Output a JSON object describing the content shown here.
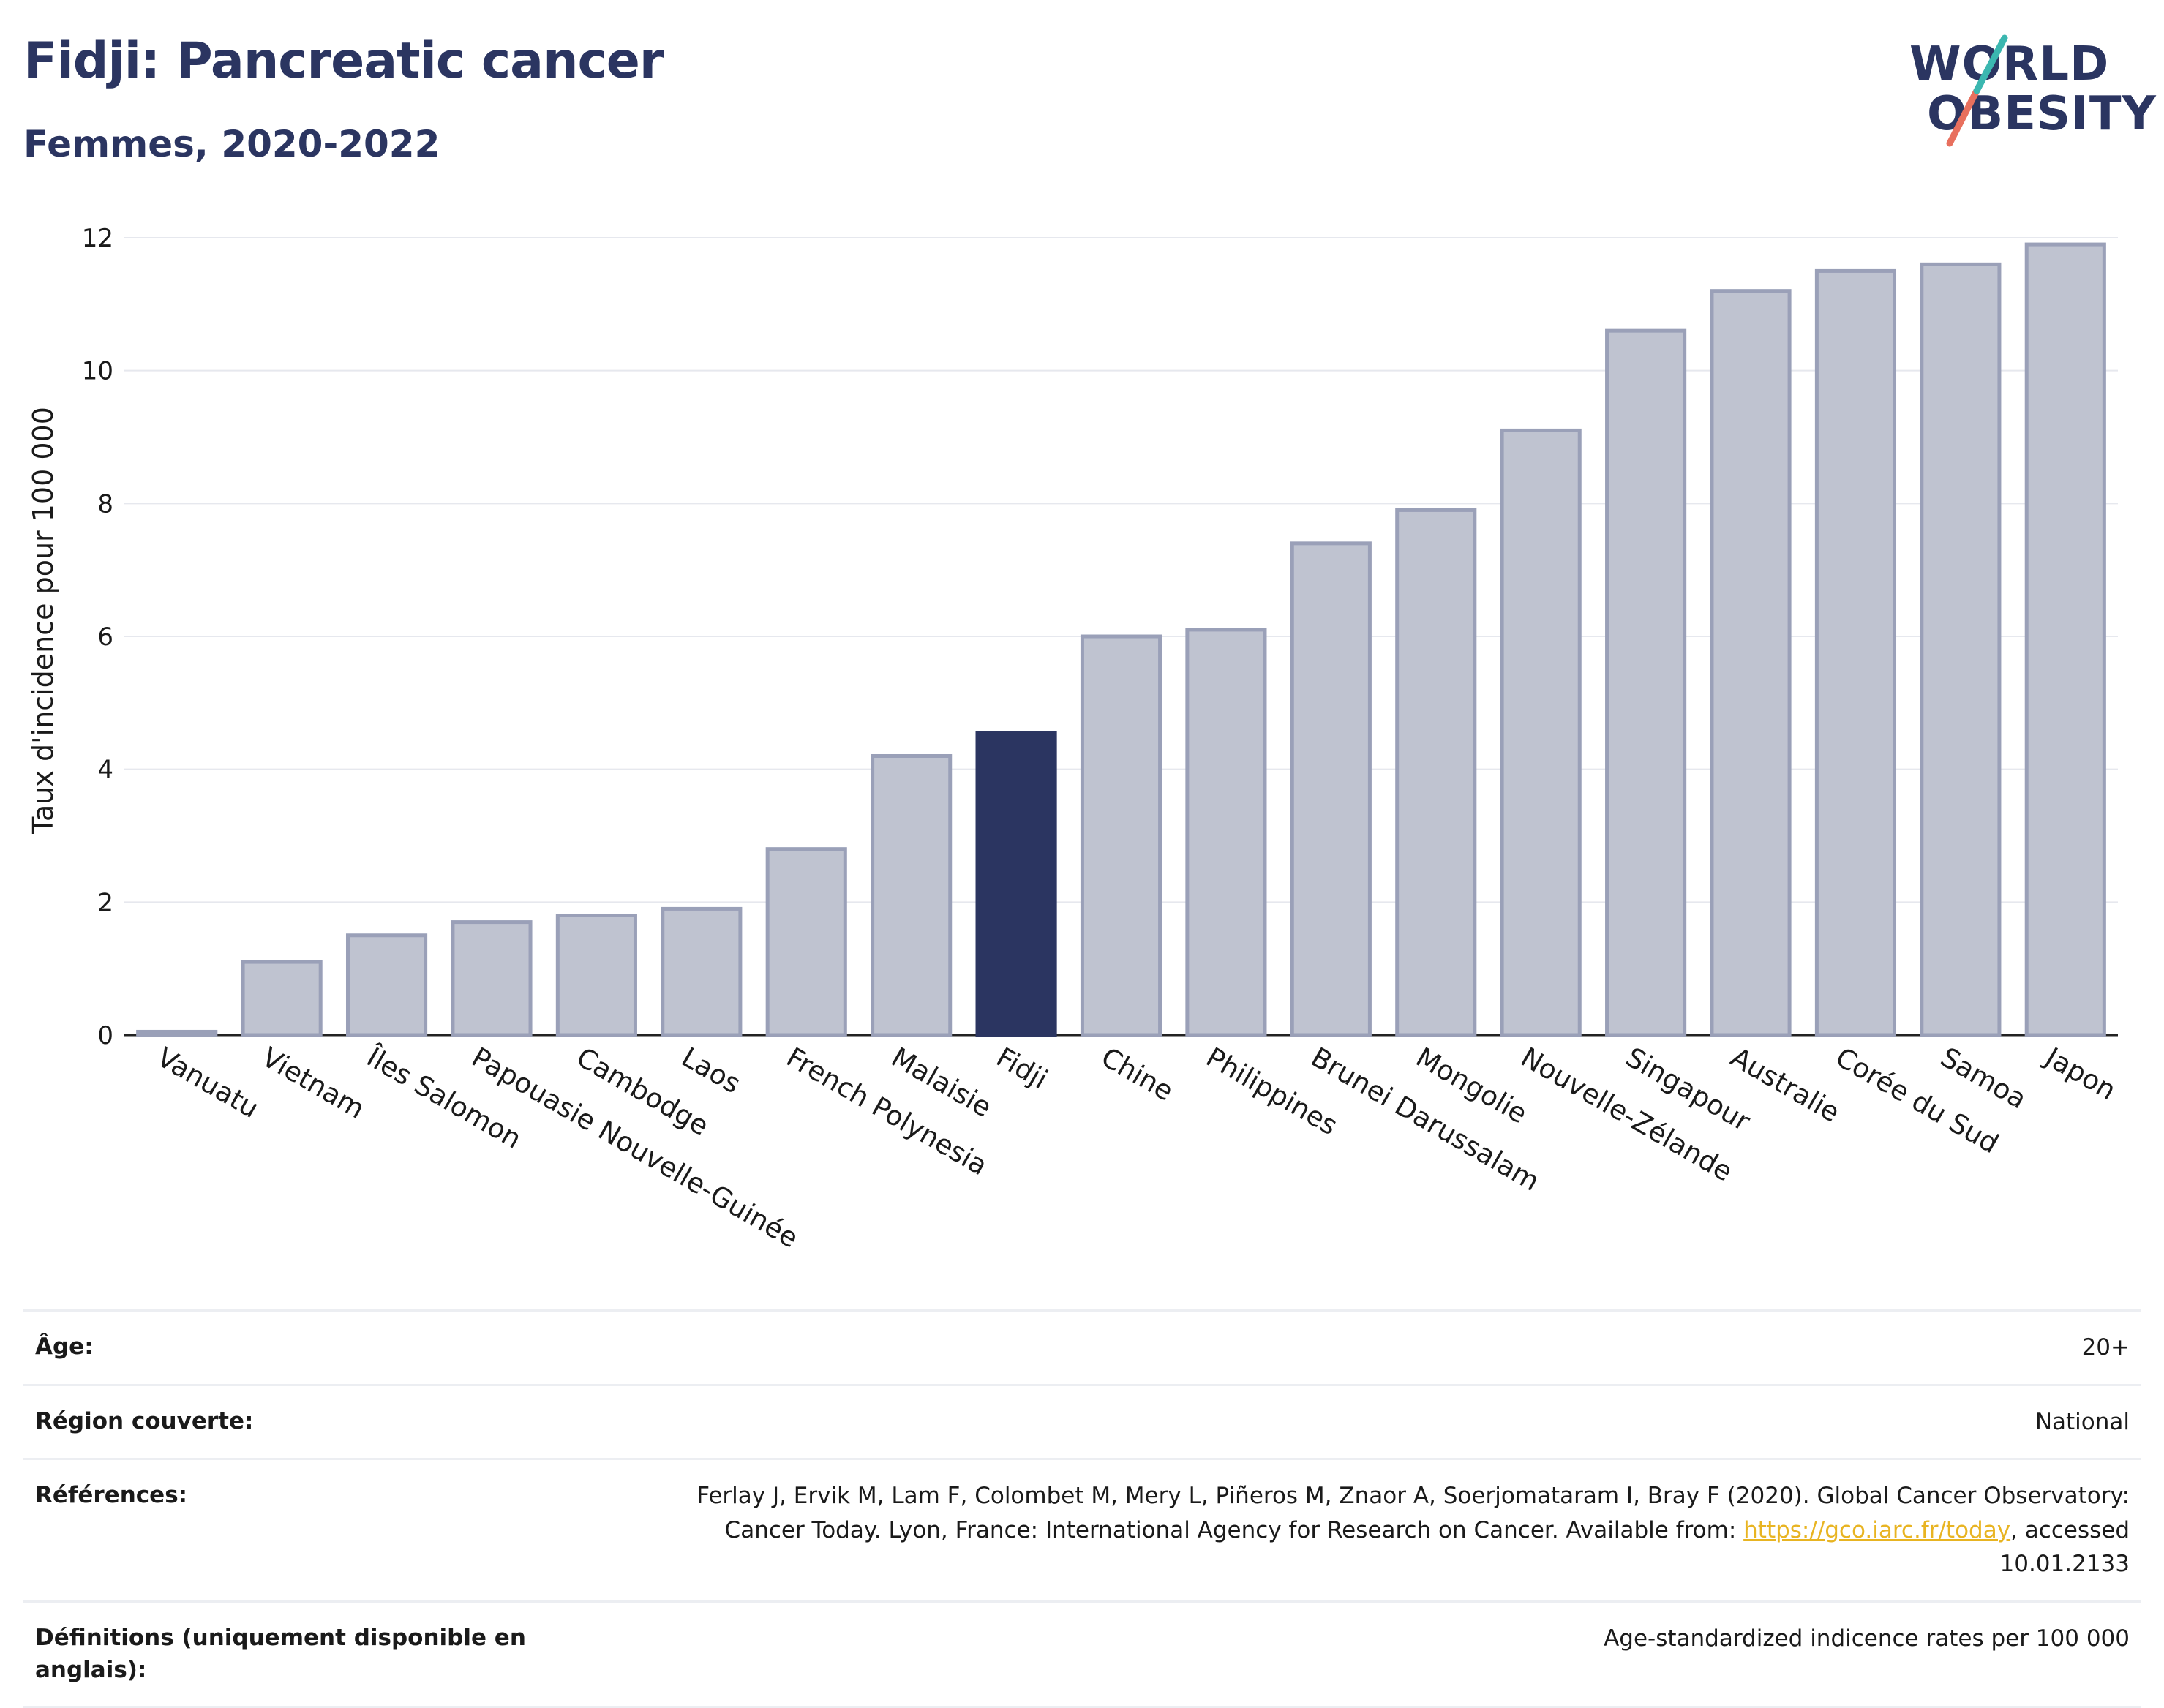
{
  "title": "Fidji: Pancreatic cancer",
  "subtitle": "Femmes, 2020-2022",
  "logo": {
    "line1": "WORLD",
    "line2": "OBESITY"
  },
  "colors": {
    "bar": "#bfc3d0",
    "bar_stroke": "#9aa0b8",
    "highlight": "#2b3561",
    "title": "#2b3561"
  },
  "chart_data": {
    "type": "bar",
    "title": "Fidji: Pancreatic cancer",
    "subtitle": "Femmes, 2020-2022",
    "ylabel": "Taux d'incidence pour 100 000",
    "xlabel": "",
    "ylim": [
      0,
      12
    ],
    "yticks": [
      0,
      2,
      4,
      6,
      8,
      10,
      12
    ],
    "grid": true,
    "highlight": "Fidji",
    "categories": [
      "Vanuatu",
      "Vietnam",
      "Îles Salomon",
      "Papouasie Nouvelle-Guinée",
      "Cambodge",
      "Laos",
      "French Polynesia",
      "Malaisie",
      "Fidji",
      "Chine",
      "Philippines",
      "Brunei Darussalam",
      "Mongolie",
      "Nouvelle-Zélande",
      "Singapour",
      "Australie",
      "Corée du Sud",
      "Samoa",
      "Japon"
    ],
    "values": [
      0.05,
      1.1,
      1.5,
      1.7,
      1.8,
      1.9,
      2.8,
      4.2,
      4.55,
      6.0,
      6.1,
      7.4,
      7.9,
      9.1,
      10.6,
      11.2,
      11.5,
      11.6,
      11.9
    ]
  },
  "info": {
    "age": {
      "label": "Âge:",
      "value": "20+"
    },
    "region": {
      "label": "Région couverte:",
      "value": "National"
    },
    "references": {
      "label": "Références:",
      "text_before": "Ferlay J, Ervik M, Lam F, Colombet M, Mery L, Piñeros M, Znaor A, Soerjomataram I, Bray F (2020). Global Cancer Observatory: Cancer Today. Lyon, France: International Agency for Research on Cancer. Available from: ",
      "link": "https://gco.iarc.fr/today",
      "text_after": ", accessed 10.01.2133"
    },
    "definitions": {
      "label": "Définitions (uniquement disponible en anglais):",
      "value": "Age-standardized indicence rates per 100 000"
    }
  }
}
